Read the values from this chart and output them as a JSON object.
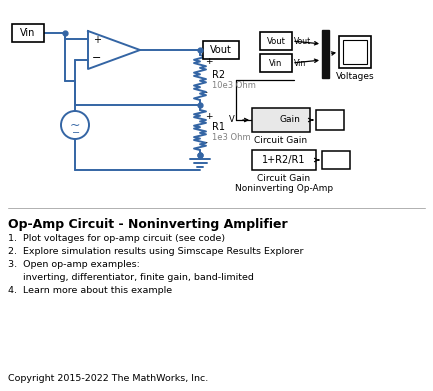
{
  "title": "Op-Amp Circuit - Noninverting Amplifier",
  "bg_color": "#ffffff",
  "circuit_color": "#3465a4",
  "text_color": "#000000",
  "gray_text": "#808080",
  "bullet_items": [
    "1.  Plot voltages for op-amp circuit (see code)",
    "2.  Explore simulation results using Simscape Results Explorer",
    "3.  Open op-amp examples:",
    "     inverting, differentiator, finite gain, band-limited",
    "4.  Learn more about this example"
  ],
  "copyright": "Copyright 2015-2022 The MathWorks, Inc."
}
